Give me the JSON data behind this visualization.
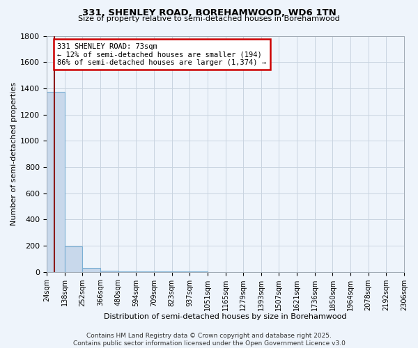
{
  "title": "331, SHENLEY ROAD, BOREHAMWOOD, WD6 1TN",
  "subtitle": "Size of property relative to semi-detached houses in Borehamwood",
  "xlabel": "Distribution of semi-detached houses by size in Borehamwood",
  "ylabel": "Number of semi-detached properties",
  "footer": "Contains HM Land Registry data © Crown copyright and database right 2025.\nContains public sector information licensed under the Open Government Licence v3.0",
  "property_size": 73,
  "annotation_title": "331 SHENLEY ROAD: 73sqm",
  "annotation_line1": "← 12% of semi-detached houses are smaller (194)",
  "annotation_line2": "86% of semi-detached houses are larger (1,374) →",
  "ylim": [
    0,
    1800
  ],
  "bar_color": "#c8d8eb",
  "bar_edge_color": "#7bafd4",
  "vline_color": "#8b1a1a",
  "annotation_box_color": "#cc0000",
  "bg_color": "#eef4fb",
  "grid_color": "#c8d4e0",
  "bin_edges": [
    24,
    138,
    252,
    366,
    480,
    594,
    709,
    823,
    937,
    1051,
    1165,
    1279,
    1393,
    1507,
    1621,
    1736,
    1850,
    1964,
    2078,
    2192,
    2306
  ],
  "bin_counts": [
    1374,
    194,
    30,
    8,
    4,
    2,
    1,
    1,
    1,
    0,
    0,
    0,
    0,
    0,
    0,
    0,
    0,
    0,
    0,
    0
  ],
  "tick_labels": [
    "24sqm",
    "138sqm",
    "252sqm",
    "366sqm",
    "480sqm",
    "594sqm",
    "709sqm",
    "823sqm",
    "937sqm",
    "1051sqm",
    "1165sqm",
    "1279sqm",
    "1393sqm",
    "1507sqm",
    "1621sqm",
    "1736sqm",
    "1850sqm",
    "1964sqm",
    "2078sqm",
    "2192sqm",
    "2306sqm"
  ],
  "yticks": [
    0,
    200,
    400,
    600,
    800,
    1000,
    1200,
    1400,
    1600,
    1800
  ]
}
